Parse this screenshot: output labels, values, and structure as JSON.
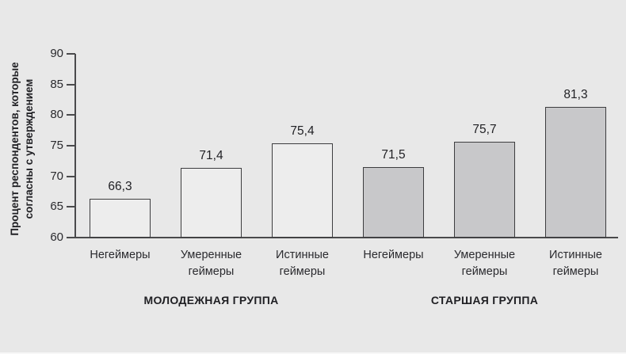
{
  "chart_data": {
    "type": "bar",
    "title": "",
    "ylabel_lines": [
      "Процент респондентов, которые",
      "согласны с утверждением"
    ],
    "ylim": [
      60,
      90
    ],
    "yticks": [
      60,
      65,
      70,
      75,
      80,
      85,
      90
    ],
    "grid": false,
    "legend": "none",
    "decimal_separator": ",",
    "groups": [
      {
        "label": "МОЛОДЕЖНАЯ ГРУППА",
        "fill": "#ededed",
        "bars": [
          {
            "category": "Негеймеры",
            "value": 66.3,
            "value_label": "66,3"
          },
          {
            "category": "Умеренные геймеры",
            "value": 71.4,
            "value_label": "71,4"
          },
          {
            "category": "Истинные геймеры",
            "value": 75.4,
            "value_label": "75,4"
          }
        ]
      },
      {
        "label": "СТАРШАЯ ГРУППА",
        "fill": "#c8c8ca",
        "bars": [
          {
            "category": "Негеймеры",
            "value": 71.5,
            "value_label": "71,5"
          },
          {
            "category": "Умеренные геймеры",
            "value": 75.7,
            "value_label": "75,7"
          },
          {
            "category": "Истинные геймеры",
            "value": 81.3,
            "value_label": "81,3"
          }
        ]
      }
    ],
    "colors": {
      "background": "#e8e8e8",
      "light_bar_fill": "#ededed",
      "dark_bar_fill": "#c8c8ca",
      "bar_border": "#3d3d3f",
      "axis": "#4a4a4c",
      "text": "#1f1f23"
    }
  }
}
